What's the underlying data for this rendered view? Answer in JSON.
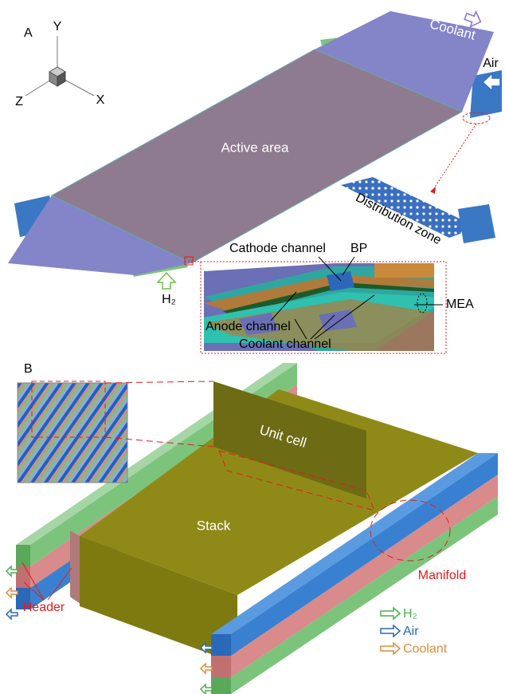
{
  "panel_a": {
    "label": "A",
    "axes": {
      "y": "Y",
      "z": "Z",
      "x": "X"
    },
    "coolant": "Coolant",
    "air": "Air",
    "active_area": "Active area",
    "distribution_zone": "Distribution zone",
    "h2": "H₂",
    "cathode_channel": "Cathode channel",
    "bp": "BP",
    "mea": "MEA",
    "anode_channel": "Anode channel",
    "coolant_channel": "Coolant channel"
  },
  "panel_b": {
    "label": "B",
    "unit_cell": "Unit cell",
    "stack": "Stack",
    "manifold": "Manifold",
    "header": "Header",
    "legend": [
      "H₂",
      "Air",
      "Coolant"
    ]
  }
}
